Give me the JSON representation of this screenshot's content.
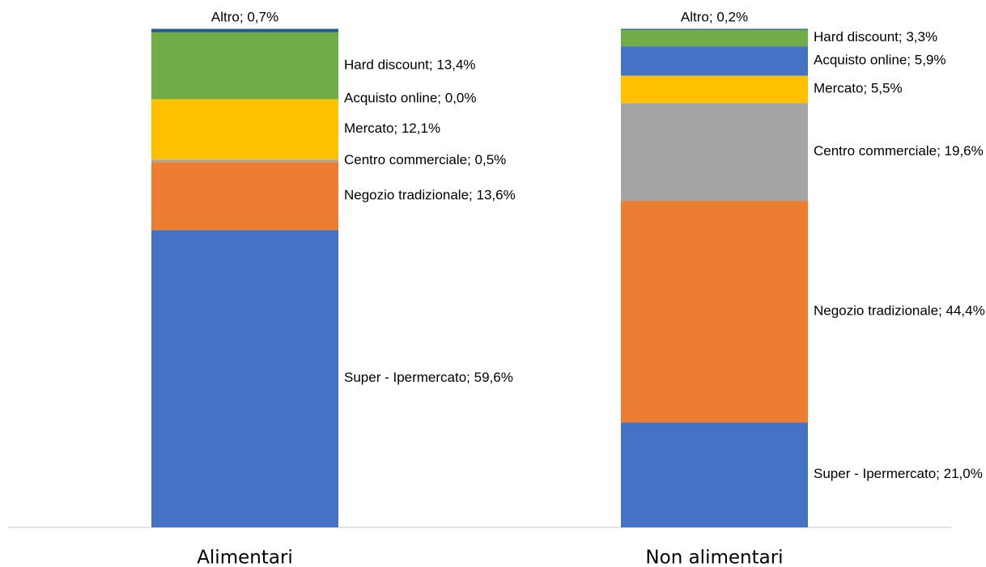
{
  "chart_data": {
    "type": "stacked_bar",
    "categories": [
      "Alimentari",
      "Non alimentari"
    ],
    "ylim": [
      0,
      100
    ],
    "series": [
      {
        "name": "Super - Ipermercato",
        "color": "#4472c4",
        "values": [
          59.6,
          21.0
        ],
        "value_labels": [
          "Super - Ipermercato; 59,6%",
          "Super - Ipermercato; 21,0%"
        ]
      },
      {
        "name": "Negozio tradizionale",
        "color": "#ed7d31",
        "values": [
          13.6,
          44.4
        ],
        "value_labels": [
          "Negozio tradizionale; 13,6%",
          "Negozio tradizionale; 44,4%"
        ]
      },
      {
        "name": "Centro commerciale",
        "color": "#a5a5a5",
        "values": [
          0.5,
          19.6
        ],
        "value_labels": [
          "Centro commerciale; 0,5%",
          "Centro commerciale; 19,6%"
        ]
      },
      {
        "name": "Mercato",
        "color": "#ffc000",
        "values": [
          12.1,
          5.5
        ],
        "value_labels": [
          "Mercato; 12,1%",
          "Mercato; 5,5%"
        ]
      },
      {
        "name": "Acquisto online",
        "color": "#4472c4",
        "values": [
          0.0,
          5.9
        ],
        "value_labels": [
          "Acquisto online; 0,0%",
          "Acquisto online; 5,9%"
        ]
      },
      {
        "name": "Hard discount",
        "color": "#70ad47",
        "values": [
          13.4,
          3.3
        ],
        "value_labels": [
          "Hard discount; 13,4%",
          "Hard discount; 3,3%"
        ]
      },
      {
        "name": "Altro",
        "color": "#255e91",
        "values": [
          0.7,
          0.2
        ],
        "value_labels": [
          "Altro; 0,7%",
          "Altro; 0,2%"
        ]
      }
    ]
  }
}
